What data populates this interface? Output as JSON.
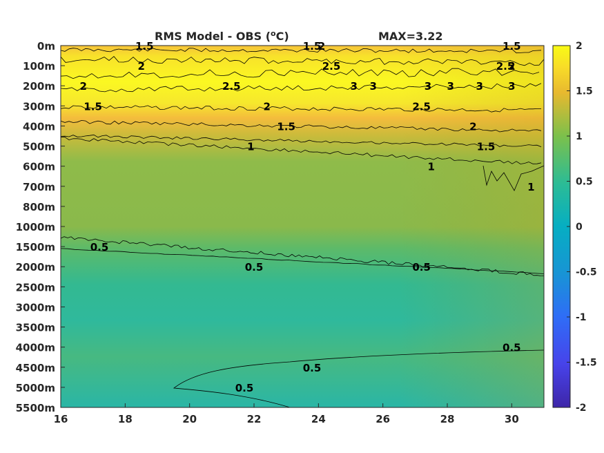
{
  "chart_data": {
    "type": "heatmap",
    "title": "RMS Model - OBS (",
    "title_sup": "o",
    "title_unit": "C)",
    "max_label": "MAX=3.22",
    "x_ticks": [
      "16",
      "18",
      "20",
      "22",
      "24",
      "26",
      "28",
      "30"
    ],
    "x_values": [
      16,
      18,
      20,
      22,
      24,
      26,
      28,
      30
    ],
    "xlim": [
      16,
      31
    ],
    "y_ticks": [
      "0m",
      "100m",
      "200m",
      "300m",
      "400m",
      "500m",
      "600m",
      "700m",
      "800m",
      "1000m",
      "1500m",
      "2000m",
      "2500m",
      "3000m",
      "3500m",
      "4000m",
      "4500m",
      "5000m",
      "5500m"
    ],
    "colorbar": {
      "ticks": [
        "2",
        "1.5",
        "1",
        "0.5",
        "0",
        "-0.5",
        "-1",
        "-1.5",
        "-2"
      ],
      "values": [
        2,
        1.5,
        1,
        0.5,
        0,
        -0.5,
        -1,
        -1.5,
        -2
      ],
      "range": [
        -2,
        2
      ],
      "colormap": "parula"
    },
    "field_by_depth": [
      {
        "depth": "0m",
        "value_left": 1.6,
        "value_right": 1.8
      },
      {
        "depth": "100m",
        "value_left": 2.0,
        "value_right": 2.1
      },
      {
        "depth": "200m",
        "value_left": 2.1,
        "value_right": 2.4
      },
      {
        "depth": "300m",
        "value_left": 1.6,
        "value_right": 2.1
      },
      {
        "depth": "400m",
        "value_left": 1.3,
        "value_right": 1.9
      },
      {
        "depth": "500m",
        "value_left": 0.85,
        "value_right": 1.4
      },
      {
        "depth": "600m",
        "value_left": 0.8,
        "value_right": 1.1
      },
      {
        "depth": "700m",
        "value_left": 0.8,
        "value_right": 0.95
      },
      {
        "depth": "800m",
        "value_left": 0.8,
        "value_right": 0.9
      },
      {
        "depth": "1000m",
        "value_left": 0.75,
        "value_right": 0.85
      },
      {
        "depth": "1500m",
        "value_left": 0.5,
        "value_right": 0.75
      },
      {
        "depth": "2000m",
        "value_left": 0.42,
        "value_right": 0.5
      },
      {
        "depth": "2500m",
        "value_left": 0.38,
        "value_right": 0.45
      },
      {
        "depth": "3000m",
        "value_left": 0.35,
        "value_right": 0.42
      },
      {
        "depth": "3500m",
        "value_left": 0.36,
        "value_right": 0.42
      },
      {
        "depth": "4000m",
        "value_left": 0.4,
        "value_right": 0.48
      },
      {
        "depth": "4500m",
        "value_left": 0.45,
        "value_right": 0.55
      },
      {
        "depth": "5000m",
        "value_left": 0.4,
        "value_right": 0.65
      },
      {
        "depth": "5500m",
        "value_left": 0.35,
        "value_right": 0.7
      }
    ],
    "contour_labels": [
      {
        "text": "1.5",
        "x": 18.6,
        "depth": "0m"
      },
      {
        "text": "2",
        "x": 18.5,
        "depth": "100m"
      },
      {
        "text": "1.5",
        "x": 23.8,
        "depth": "0m"
      },
      {
        "text": "2",
        "x": 24.1,
        "depth": "0m"
      },
      {
        "text": "2.5",
        "x": 24.4,
        "depth": "100m"
      },
      {
        "text": "1.5",
        "x": 30.0,
        "depth": "0m"
      },
      {
        "text": "2",
        "x": 30.0,
        "depth": "100m"
      },
      {
        "text": "2.5",
        "x": 29.8,
        "depth": "100m"
      },
      {
        "text": "2",
        "x": 16.7,
        "depth": "200m"
      },
      {
        "text": "2.5",
        "x": 21.3,
        "depth": "200m"
      },
      {
        "text": "3",
        "x": 25.1,
        "depth": "200m"
      },
      {
        "text": "3",
        "x": 25.7,
        "depth": "200m"
      },
      {
        "text": "3",
        "x": 27.4,
        "depth": "200m"
      },
      {
        "text": "3",
        "x": 28.1,
        "depth": "200m"
      },
      {
        "text": "3",
        "x": 29.0,
        "depth": "200m"
      },
      {
        "text": "3",
        "x": 30.0,
        "depth": "200m"
      },
      {
        "text": "1.5",
        "x": 17.0,
        "depth": "300m"
      },
      {
        "text": "2",
        "x": 22.4,
        "depth": "300m"
      },
      {
        "text": "2.5",
        "x": 27.2,
        "depth": "300m"
      },
      {
        "text": "1.5",
        "x": 23.0,
        "depth": "400m"
      },
      {
        "text": "2",
        "x": 28.8,
        "depth": "400m"
      },
      {
        "text": "1.5",
        "x": 29.2,
        "depth": "500m"
      },
      {
        "text": "1",
        "x": 21.9,
        "depth": "500m"
      },
      {
        "text": "1",
        "x": 27.5,
        "depth": "600m"
      },
      {
        "text": "1",
        "x": 30.6,
        "depth": "700m"
      },
      {
        "text": "0.5",
        "x": 17.2,
        "depth": "1500m"
      },
      {
        "text": "0.5",
        "x": 22.0,
        "depth": "2000m"
      },
      {
        "text": "0.5",
        "x": 27.2,
        "depth": "2000m"
      },
      {
        "text": "0.5",
        "x": 23.8,
        "depth": "4500m"
      },
      {
        "text": "0.5",
        "x": 30.0,
        "depth": "4000m"
      },
      {
        "text": "0.5",
        "x": 21.7,
        "depth": "5000m"
      }
    ],
    "grid": false,
    "legend": "colorbar-right"
  }
}
